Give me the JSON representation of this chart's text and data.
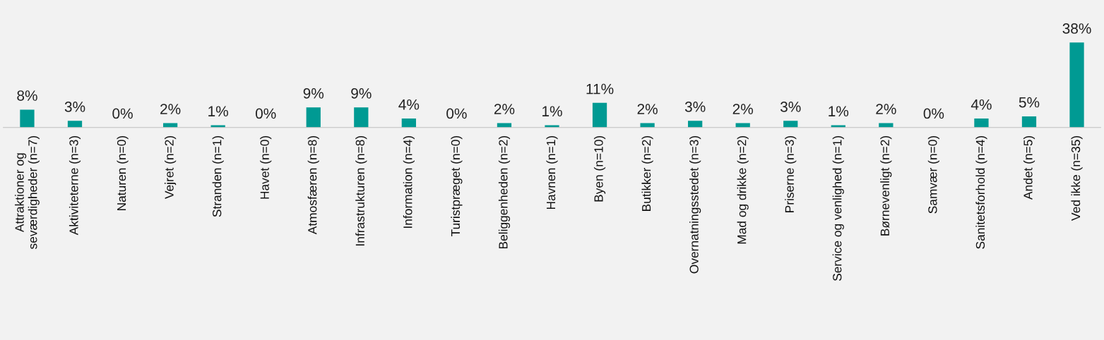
{
  "chart_data": {
    "type": "bar",
    "categories": [
      "Attraktioner og\nseværdigheder (n=7)",
      "Aktiviteterne (n=3)",
      "Naturen (n=0)",
      "Vejret (n=2)",
      "Stranden (n=1)",
      "Havet (n=0)",
      "Atmosfæren (n=8)",
      "Infrastrukturen (n=8)",
      "Information (n=4)",
      "Turistpræget (n=0)",
      "Beliggenheden (n=2)",
      "Havnen (n=1)",
      "Byen (n=10)",
      "Butikker (n=2)",
      "Overnatningsstedet (n=3)",
      "Mad og drikke (n=2)",
      "Priserne (n=3)",
      "Service og venlighed (n=1)",
      "Børnevenligt (n=2)",
      "Samvær (n=0)",
      "Sanitetsforhold (n=4)",
      "Andet (n=5)",
      "Ved ikke (n=35)"
    ],
    "values": [
      8,
      3,
      0,
      2,
      1,
      0,
      9,
      9,
      4,
      0,
      2,
      1,
      11,
      2,
      3,
      2,
      3,
      1,
      2,
      0,
      4,
      5,
      38
    ],
    "value_labels": [
      "8%",
      "3%",
      "0%",
      "2%",
      "1%",
      "0%",
      "9%",
      "9%",
      "4%",
      "0%",
      "2%",
      "1%",
      "11%",
      "2%",
      "3%",
      "2%",
      "3%",
      "1%",
      "2%",
      "0%",
      "4%",
      "5%",
      "38%"
    ],
    "color": "#009a93",
    "grid": false,
    "legend": false
  }
}
